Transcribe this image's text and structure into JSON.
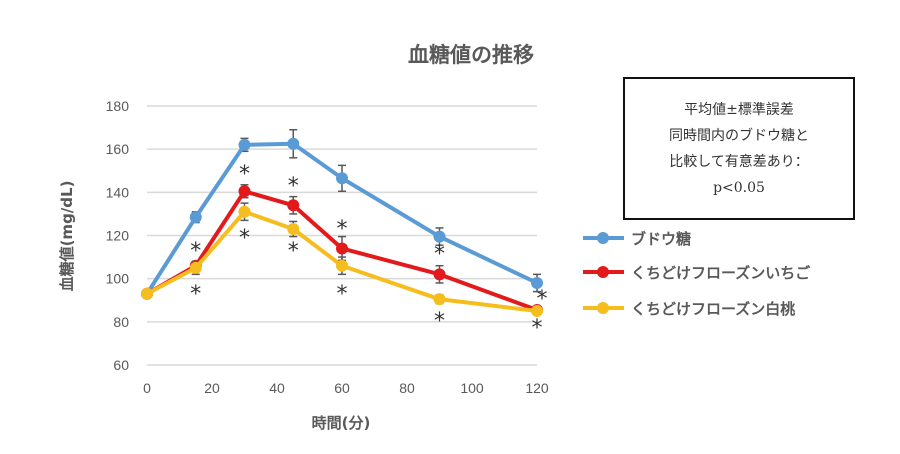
{
  "chart_data": {
    "type": "line",
    "title": "血糖値の推移",
    "xlabel": "時間(分)",
    "ylabel": "血糖値(mg/dL)",
    "x": [
      0,
      15,
      30,
      45,
      60,
      90,
      120
    ],
    "xlim": [
      0,
      120
    ],
    "ylim": [
      60,
      180
    ],
    "xticks": [
      0,
      20,
      40,
      60,
      80,
      100,
      120
    ],
    "yticks": [
      60,
      80,
      100,
      120,
      140,
      160,
      180
    ],
    "grid": "horizontal",
    "legend_position": "right",
    "series": [
      {
        "name": "ブドウ糖",
        "color": "#5B9BD5",
        "values": [
          93,
          128.5,
          162,
          162.5,
          146.5,
          119.5,
          98
        ],
        "errors": [
          1.5,
          2.5,
          3,
          6.5,
          6,
          4,
          4
        ]
      },
      {
        "name": "くちどけフローズンいちご",
        "color": "#E31A1C",
        "values": [
          93,
          106,
          140.5,
          134,
          114,
          102,
          85.5
        ],
        "errors": [
          1.5,
          2,
          3,
          4,
          5.5,
          4,
          1.5
        ]
      },
      {
        "name": "くちどけフローズン白桃",
        "color": "#F5BE1E",
        "values": [
          93,
          105,
          131,
          123,
          106,
          90.5,
          85
        ],
        "errors": [
          1.5,
          3,
          4,
          3.5,
          4,
          2,
          1.5
        ]
      }
    ],
    "significance_markers": [
      {
        "series": "くちどけフローズンいちご",
        "x": [
          15,
          30,
          45,
          60,
          90,
          120
        ],
        "symbol": "*"
      },
      {
        "series": "くちどけフローズン白桃",
        "x": [
          15,
          30,
          45,
          60,
          90,
          120
        ],
        "symbol": "*"
      }
    ],
    "annotation": [
      "平均値±標準誤差",
      "同時間内のブドウ糖と",
      "比較して有意差あり：",
      "p<0.05"
    ]
  }
}
